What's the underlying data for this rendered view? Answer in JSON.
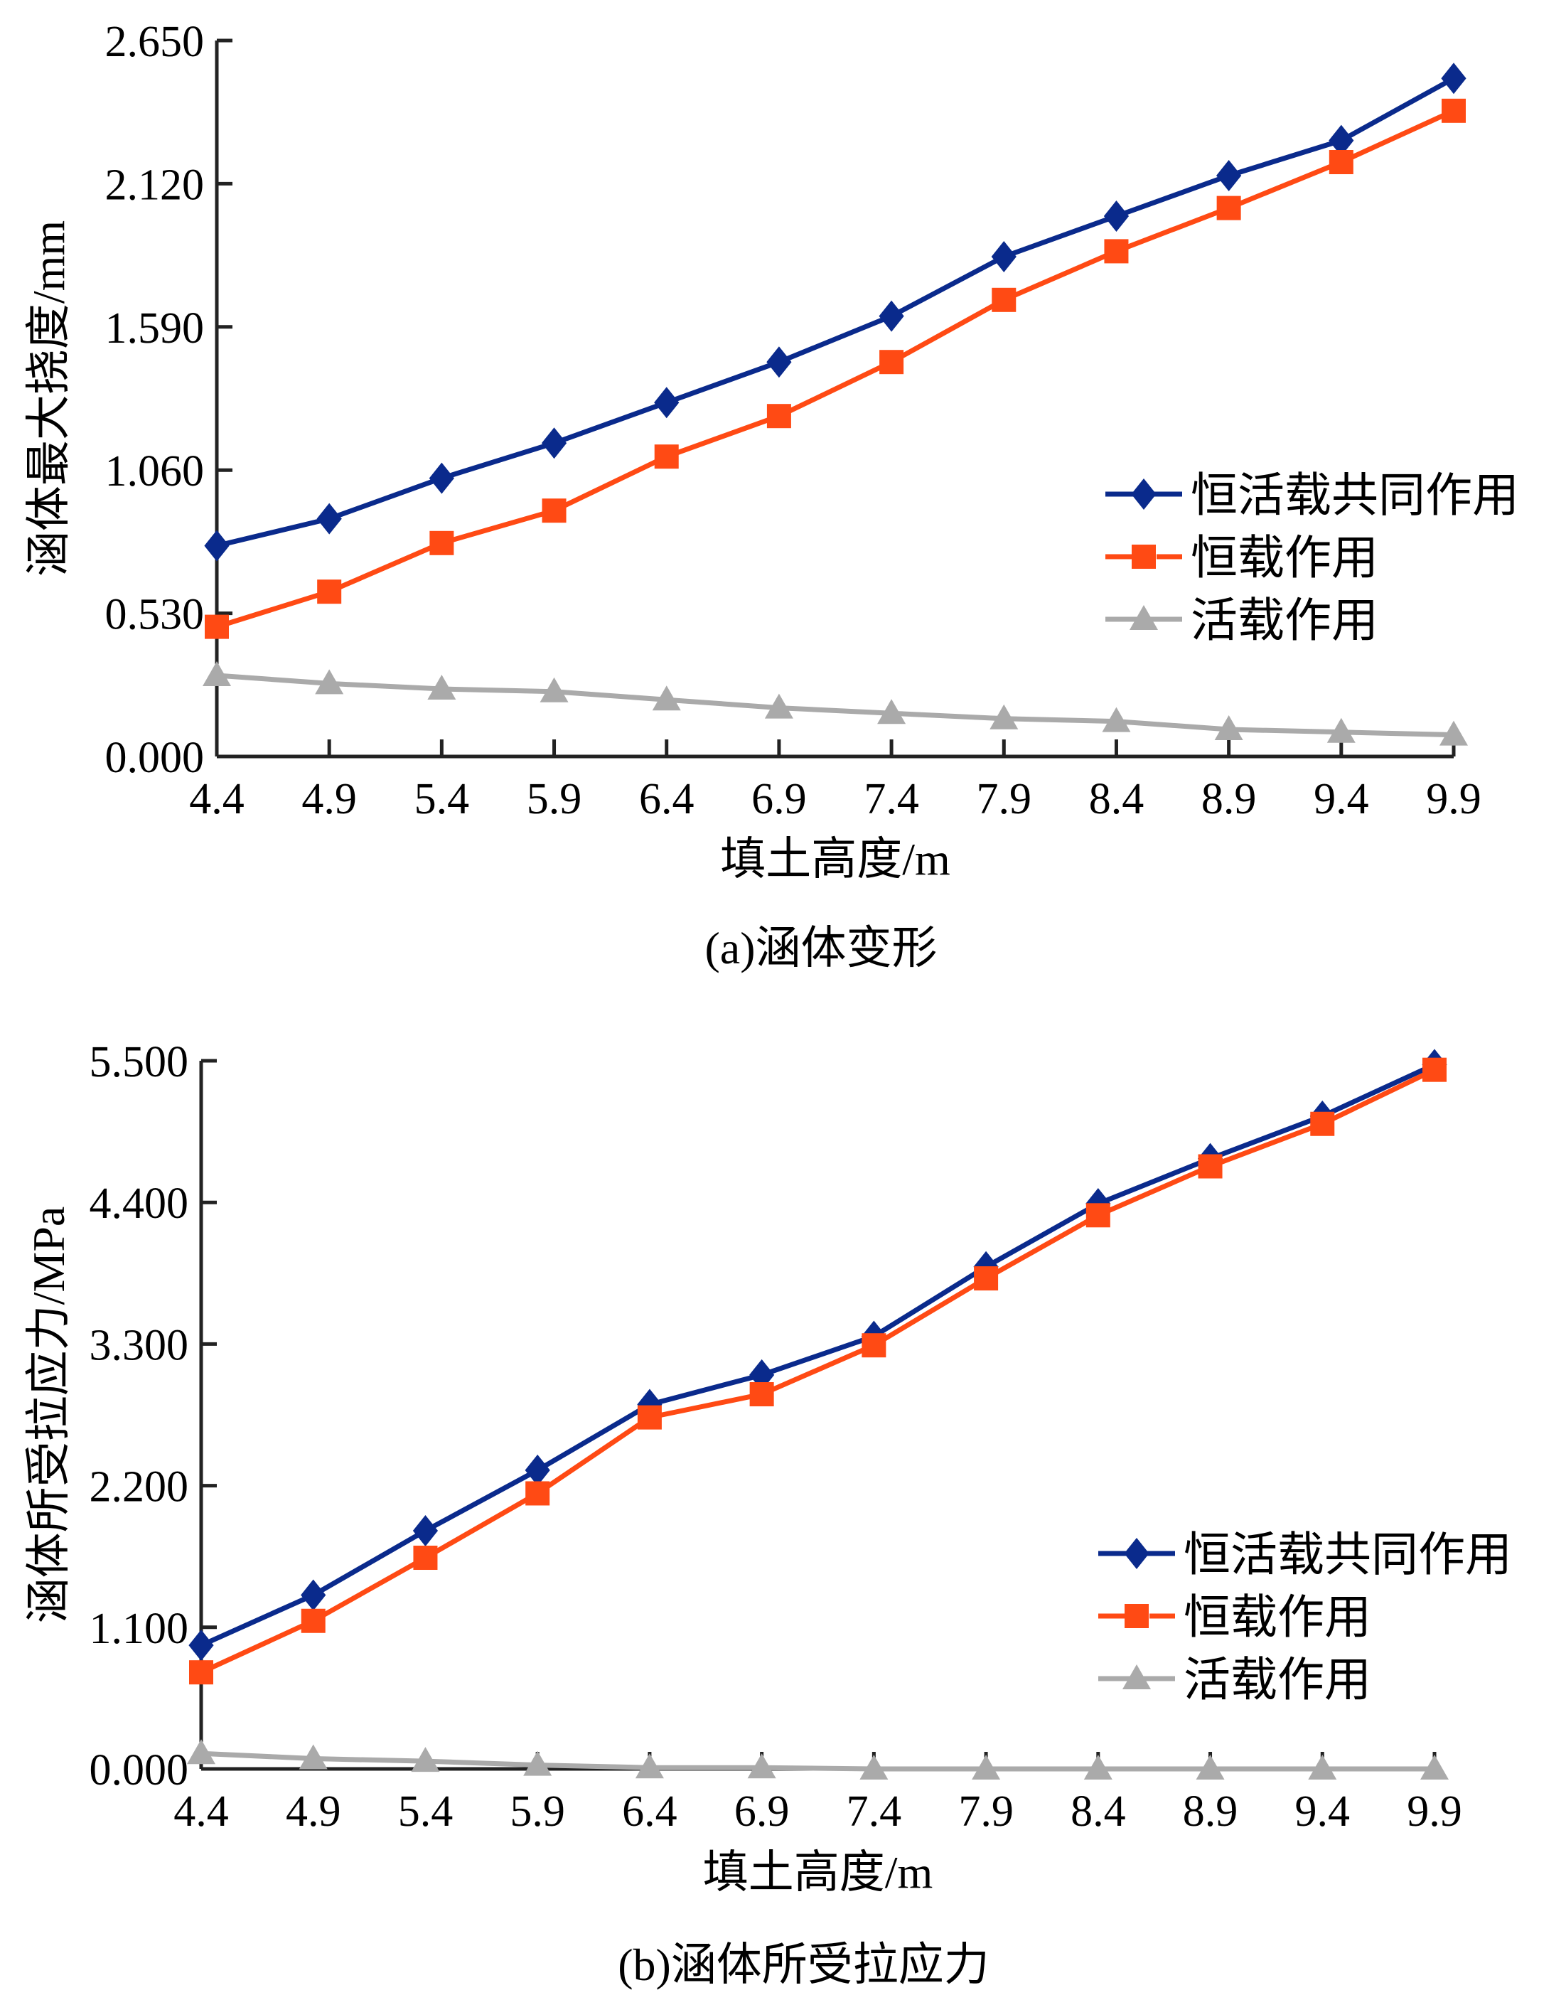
{
  "chart_data": [
    {
      "type": "line",
      "caption": "(a)涵体变形",
      "title": "",
      "xlabel": "填土高度/m",
      "ylabel": "涵体最大挠度/mm",
      "x": [
        4.4,
        4.9,
        5.4,
        5.9,
        6.4,
        6.9,
        7.4,
        7.9,
        8.4,
        8.9,
        9.4,
        9.9
      ],
      "x_tick_labels": [
        "4.4",
        "4.9",
        "5.4",
        "5.9",
        "6.4",
        "6.9",
        "7.4",
        "7.9",
        "8.4",
        "8.9",
        "9.4",
        "9.9"
      ],
      "y_ticks": [
        0.0,
        0.53,
        1.06,
        1.59,
        2.12,
        2.65
      ],
      "y_tick_labels": [
        "0.000",
        "0.530",
        "1.060",
        "1.590",
        "2.120",
        "2.650"
      ],
      "xlim": [
        4.4,
        9.9
      ],
      "ylim": [
        0,
        2.65
      ],
      "grid": false,
      "legend_position": "center-right",
      "series": [
        {
          "name": "恒活载共同作用",
          "color": "#0a2a8c",
          "marker": "diamond",
          "values": [
            0.78,
            0.88,
            1.03,
            1.16,
            1.31,
            1.46,
            1.63,
            1.85,
            2.0,
            2.15,
            2.28,
            2.51
          ]
        },
        {
          "name": "恒载作用",
          "color": "#ff4a14",
          "marker": "square",
          "values": [
            0.48,
            0.61,
            0.79,
            0.91,
            1.11,
            1.26,
            1.46,
            1.69,
            1.87,
            2.03,
            2.2,
            2.39
          ]
        },
        {
          "name": "活载作用",
          "color": "#aaaaaa",
          "marker": "triangle",
          "values": [
            0.3,
            0.27,
            0.25,
            0.24,
            0.21,
            0.18,
            0.16,
            0.14,
            0.13,
            0.1,
            0.09,
            0.08
          ]
        }
      ]
    },
    {
      "type": "line",
      "caption": "(b)涵体所受拉应力",
      "title": "",
      "xlabel": "填土高度/m",
      "ylabel": "涵体所受拉应力/MPa",
      "x": [
        4.4,
        4.9,
        5.4,
        5.9,
        6.4,
        6.9,
        7.4,
        7.9,
        8.4,
        8.9,
        9.4,
        9.9
      ],
      "x_tick_labels": [
        "4.4",
        "4.9",
        "5.4",
        "5.9",
        "6.4",
        "6.9",
        "7.4",
        "7.9",
        "8.4",
        "8.9",
        "9.4",
        "9.9"
      ],
      "y_ticks": [
        0.0,
        1.1,
        2.2,
        3.3,
        4.4,
        5.5
      ],
      "y_tick_labels": [
        "0.000",
        "1.100",
        "2.200",
        "3.300",
        "4.400",
        "5.500"
      ],
      "xlim": [
        4.4,
        9.9
      ],
      "ylim": [
        0,
        5.5
      ],
      "grid": false,
      "legend_position": "lower-right",
      "series": [
        {
          "name": "恒活载共同作用",
          "color": "#0a2a8c",
          "marker": "diamond",
          "values": [
            0.96,
            1.35,
            1.85,
            2.32,
            2.83,
            3.06,
            3.36,
            3.9,
            4.39,
            4.74,
            5.07,
            5.47
          ]
        },
        {
          "name": "恒载作用",
          "color": "#ff4a14",
          "marker": "square",
          "values": [
            0.75,
            1.15,
            1.64,
            2.14,
            2.73,
            2.91,
            3.29,
            3.81,
            4.3,
            4.68,
            5.01,
            5.43
          ]
        },
        {
          "name": "活载作用",
          "color": "#aaaaaa",
          "marker": "triangle",
          "values": [
            0.12,
            0.08,
            0.06,
            0.03,
            0.01,
            0.01,
            0.0,
            0.0,
            0.0,
            0.0,
            0.0,
            0.0
          ]
        }
      ]
    }
  ]
}
